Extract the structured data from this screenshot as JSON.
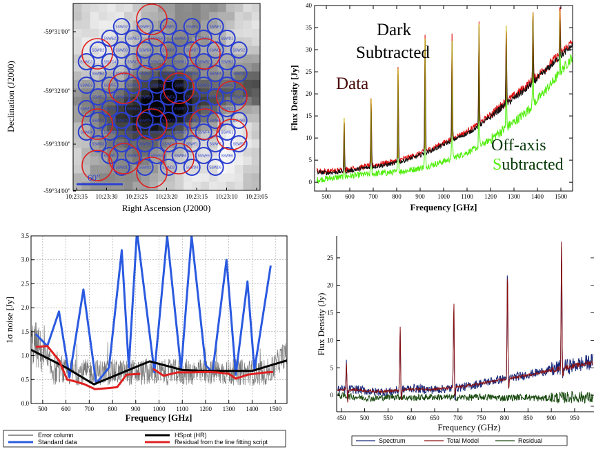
{
  "chart_data": [
    {
      "id": "sky_map",
      "type": "heatmap",
      "xlabel": "Right Ascension (J2000)",
      "ylabel": "Declination (J2000)",
      "x_ticks": [
        "10:23:35",
        "10:23:30",
        "10:23:25",
        "10:23:20",
        "10:23:15",
        "10:23:10",
        "10:23:05"
      ],
      "y_ticks": [
        "-59°31'00\"",
        "-59°32'00\"",
        "-59°33'00\"",
        "-59°34'00\""
      ],
      "scale_bar_label": "60\"",
      "colors": {
        "blue_circles": "#2b3fd0",
        "red_circles": "#e02020"
      },
      "blue_detector_labels": [
        "SSWG2",
        "SSWF1",
        "SSWF2",
        "SSWF3",
        "SSWE1",
        "SSWE2",
        "SSWE3",
        "SSWE4",
        "SSWE5",
        "SSWE6",
        "SSWD1",
        "SSWD2",
        "SSWD3",
        "SSWD4",
        "SSWD6",
        "SSWD7",
        "SSWC1",
        "SSWC2",
        "SSWC3",
        "SSWC4",
        "SSWC5",
        "SSWC6",
        "SSWB1",
        "SSWB2",
        "SSWB3",
        "SSWB4",
        "SSWB5",
        "SSWA1",
        "SSWA2",
        "SSWA3",
        "SSWF4",
        "SSWG1",
        "SSWG3",
        "SSWF5",
        "SSWD5"
      ]
    },
    {
      "id": "spectrum_subtraction",
      "type": "line",
      "xlabel": "Frequency [GHz]",
      "ylabel": "Flux Density [Jy]",
      "xlim": [
        450,
        1550
      ],
      "ylim": [
        -2,
        40
      ],
      "x_ticks": [
        500,
        600,
        700,
        800,
        900,
        1000,
        1100,
        1200,
        1300,
        1400,
        1500
      ],
      "y_ticks": [
        0,
        5,
        10,
        15,
        20,
        25,
        30,
        35,
        40
      ],
      "annotations": [
        {
          "text": "Data",
          "color": "#4a0a0a"
        },
        {
          "text": "Dark Subtracted",
          "color": "#000000"
        },
        {
          "text": "Off-axis Subtracted",
          "color": "#0a3a0a",
          "initial_color": "#55ee11"
        }
      ],
      "series": [
        {
          "label": "Data",
          "color": "#e01010",
          "x": [
            460,
            500,
            550,
            600,
            650,
            700,
            750,
            800,
            850,
            900,
            950,
            1000,
            1050,
            1100,
            1150,
            1200,
            1250,
            1300,
            1350,
            1400,
            1450,
            1500,
            1550
          ],
          "y": [
            2.6,
            2.4,
            2.6,
            2.9,
            3.4,
            3.8,
            4.3,
            4.8,
            5.6,
            6.5,
            7.6,
            8.9,
            10.2,
            11.5,
            13.2,
            15.3,
            17.5,
            19.5,
            21.6,
            24.1,
            26.6,
            29.3,
            31.8
          ]
        },
        {
          "label": "Dark Subtracted",
          "color": "#111111",
          "x": [
            460,
            500,
            550,
            600,
            650,
            700,
            750,
            800,
            850,
            900,
            950,
            1000,
            1050,
            1100,
            1150,
            1200,
            1250,
            1300,
            1350,
            1400,
            1450,
            1500,
            1550
          ],
          "y": [
            2.3,
            2.1,
            2.3,
            2.6,
            3.1,
            3.5,
            3.9,
            4.4,
            5.2,
            6.1,
            7.2,
            8.5,
            9.8,
            11.0,
            12.7,
            14.8,
            17.0,
            19.0,
            21.0,
            23.5,
            26.0,
            28.6,
            31.0
          ]
        },
        {
          "label": "Off-axis Subtracted",
          "color": "#55ee11",
          "x": [
            460,
            500,
            550,
            600,
            650,
            700,
            750,
            800,
            850,
            900,
            950,
            1000,
            1050,
            1100,
            1150,
            1200,
            1250,
            1300,
            1350,
            1400,
            1450,
            1500,
            1550
          ],
          "y": [
            0.5,
            0.8,
            1.1,
            1.4,
            1.7,
            1.9,
            2.1,
            2.3,
            2.7,
            3.2,
            3.9,
            4.7,
            5.7,
            6.7,
            8.0,
            9.7,
            11.7,
            13.6,
            15.8,
            18.7,
            21.7,
            25.0,
            28.5
          ]
        }
      ],
      "lines": [
        {
          "x": 576,
          "peak": 15
        },
        {
          "x": 691,
          "peak": 19.5
        },
        {
          "x": 806,
          "peak": 26.5
        },
        {
          "x": 921,
          "peak": 33.5
        },
        {
          "x": 1036,
          "peak": 33
        },
        {
          "x": 1151,
          "peak": 37
        },
        {
          "x": 1267,
          "peak": 36.5
        },
        {
          "x": 1381,
          "peak": 39.5
        },
        {
          "x": 1496,
          "peak": 40
        }
      ]
    },
    {
      "id": "noise",
      "type": "line",
      "xlabel": "Frequency [GHz]",
      "ylabel": "1σ noise [Jy]",
      "xlim": [
        450,
        1550
      ],
      "ylim": [
        0,
        3.5
      ],
      "x_ticks": [
        500,
        600,
        700,
        800,
        900,
        1000,
        1100,
        1200,
        1300,
        1400,
        1500
      ],
      "y_ticks": [
        0.0,
        0.5,
        1.0,
        1.5,
        2.0,
        2.5,
        3.0,
        3.5
      ],
      "grid": true,
      "legend": [
        "Error column",
        "HSpot (HR)",
        "Standard data",
        "Residual from the line fitting script"
      ],
      "series": [
        {
          "name": "Standard data",
          "color": "#2a5ae0",
          "x": [
            470,
            520,
            570,
            615,
            675,
            730,
            785,
            840,
            870,
            905,
            980,
            1035,
            1095,
            1140,
            1200,
            1230,
            1290,
            1330,
            1380,
            1410,
            1480
          ],
          "y": [
            1.45,
            1.2,
            1.92,
            0.55,
            2.38,
            0.42,
            0.75,
            3.2,
            0.75,
            3.6,
            0.65,
            3.5,
            0.7,
            3.5,
            0.8,
            0.65,
            3.0,
            0.6,
            2.55,
            0.7,
            2.88
          ]
        },
        {
          "name": "HSpot (HR)",
          "color": "#000000",
          "x": [
            450,
            600,
            720,
            960,
            1100,
            1200,
            1400,
            1550
          ],
          "y": [
            1.12,
            0.75,
            0.4,
            0.88,
            0.7,
            0.68,
            0.68,
            0.9
          ]
        },
        {
          "name": "Residual from the line fitting script",
          "color": "#e02020",
          "x": [
            470,
            520,
            570,
            605,
            640,
            680,
            725,
            780,
            820,
            860,
            920
          ],
          "y": [
            1.18,
            1.2,
            0.9,
            0.5,
            0.46,
            0.4,
            0.3,
            0.32,
            0.34,
            0.6,
            0.62
          ]
        },
        {
          "name": "Residual from the line fitting script",
          "color": "#e02020",
          "x": [
            975,
            1020,
            1080,
            1140,
            1200,
            1250,
            1300,
            1330,
            1380,
            1440,
            1490
          ],
          "y": [
            0.72,
            0.58,
            0.65,
            0.65,
            0.66,
            0.65,
            0.62,
            0.52,
            0.6,
            0.64,
            0.66
          ]
        }
      ]
    },
    {
      "id": "line_fit",
      "type": "line",
      "xlabel": "Frequency (GHz)",
      "ylabel": "Flux Density (Jy)",
      "xlim": [
        440,
        990
      ],
      "ylim": [
        -3,
        29
      ],
      "x_ticks": [
        450,
        500,
        550,
        600,
        650,
        700,
        750,
        800,
        850,
        900,
        950
      ],
      "y_ticks": [
        0,
        5,
        10,
        15,
        20,
        25
      ],
      "legend": [
        "Spectrum",
        "Total Model",
        "Residual"
      ],
      "series": [
        {
          "name": "Spectrum",
          "color": "#1a2a7a",
          "x": [
            440,
            480,
            520,
            560,
            600,
            640,
            680,
            720,
            760,
            800,
            840,
            880,
            920,
            960,
            990
          ],
          "y": [
            1.0,
            1.1,
            0.6,
            0.7,
            1.3,
            1.0,
            1.2,
            1.6,
            2.4,
            3.0,
            3.6,
            4.3,
            5.0,
            5.6,
            6.2
          ]
        },
        {
          "name": "Total Model",
          "color": "#8a1010",
          "x": [
            440,
            480,
            520,
            560,
            600,
            640,
            680,
            720,
            760,
            800,
            840,
            880,
            920,
            960,
            990
          ],
          "y": [
            1.0,
            1.0,
            0.7,
            0.8,
            1.1,
            1.1,
            1.3,
            1.7,
            2.3,
            2.9,
            3.5,
            4.2,
            4.9,
            5.5,
            6.0
          ]
        },
        {
          "name": "Residual",
          "color": "#1a4a10",
          "x": [
            440,
            480,
            520,
            560,
            600,
            640,
            680,
            720,
            760,
            800,
            840,
            880,
            920,
            960,
            990
          ],
          "y": [
            0.0,
            -0.3,
            -0.6,
            -0.2,
            -0.5,
            -0.3,
            -0.4,
            -0.4,
            -0.3,
            -0.5,
            -0.3,
            -0.6,
            -0.4,
            -0.3,
            -0.5
          ]
        }
      ],
      "lines": [
        {
          "x": 461,
          "peak": 6
        },
        {
          "x": 576,
          "peak": 12.5
        },
        {
          "x": 691,
          "peak": 17.5
        },
        {
          "x": 806,
          "peak": 23.3
        },
        {
          "x": 922,
          "peak": 29
        }
      ]
    }
  ]
}
